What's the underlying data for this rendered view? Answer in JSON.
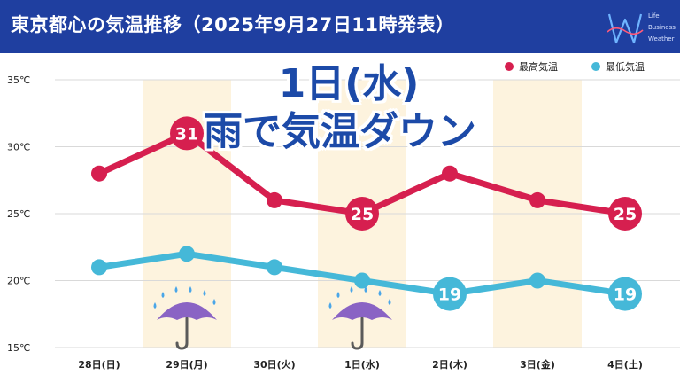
{
  "header": {
    "title": "東京都心の気温推移（2025年9月27日11時発表）",
    "logo_lines": [
      "Life",
      "Business",
      "Weather"
    ]
  },
  "headline": {
    "line1": "1日(水)",
    "line2": "雨で気温ダウン"
  },
  "colors": {
    "header_bg": "#1f3fa0",
    "high": "#d61f4f",
    "low": "#45b8d8",
    "rain_band": "#fdf3de",
    "headline": "#1c4aa8"
  },
  "chart_data": {
    "type": "line",
    "categories": [
      "28日(日)",
      "29日(月)",
      "30日(火)",
      "1日(水)",
      "2日(木)",
      "3日(金)",
      "4日(土)"
    ],
    "series": [
      {
        "name": "最高気温",
        "color": "#d61f4f",
        "values": [
          28,
          31,
          26,
          25,
          28,
          26,
          25
        ]
      },
      {
        "name": "最低気温",
        "color": "#45b8d8",
        "values": [
          21,
          22,
          21,
          20,
          19,
          20,
          19
        ]
      }
    ],
    "labeled_points": [
      {
        "series": "最高気温",
        "index": 1,
        "label": "31"
      },
      {
        "series": "最高気温",
        "index": 3,
        "label": "25"
      },
      {
        "series": "最高気温",
        "index": 6,
        "label": "25"
      },
      {
        "series": "最低気温",
        "index": 4,
        "label": "19"
      },
      {
        "series": "最低気温",
        "index": 6,
        "label": "19"
      }
    ],
    "rain_days": [
      "29日(月)",
      "1日(水)"
    ],
    "shaded_days": [
      "29日(月)",
      "1日(水)",
      "3日(金)"
    ],
    "yticks": [
      "15℃",
      "20℃",
      "25℃",
      "30℃",
      "35℃"
    ],
    "ylim": [
      15,
      35
    ],
    "grid": true,
    "legend_position": "top-right",
    "icons": [
      "umbrella-rain-icon"
    ]
  }
}
